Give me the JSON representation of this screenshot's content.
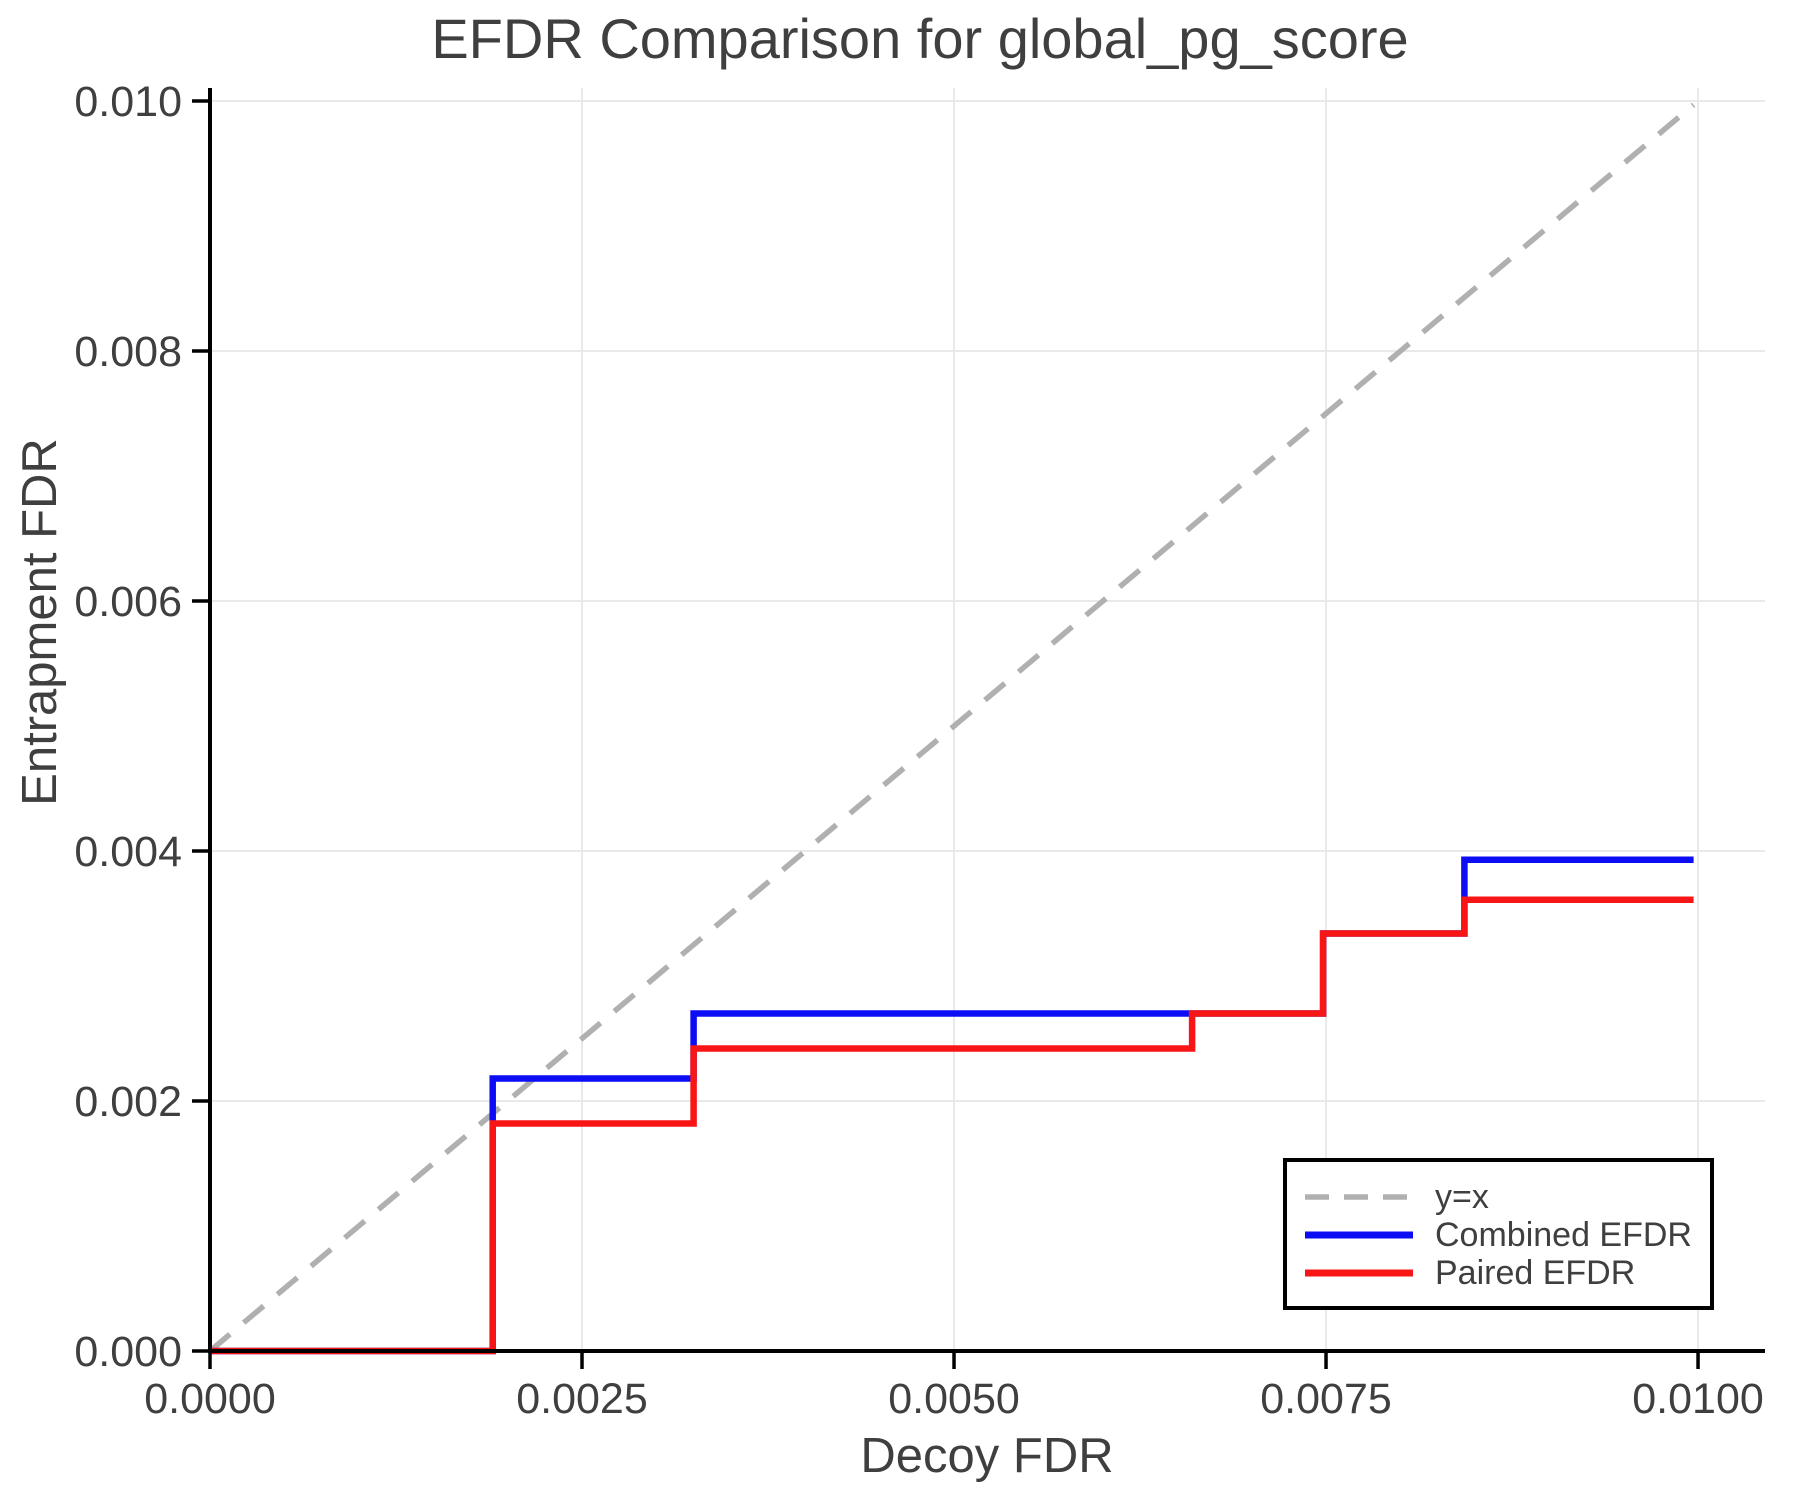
{
  "chart_data": {
    "type": "line",
    "title": "EFDR Comparison for global_pg_score",
    "xlabel": "Decoy FDR",
    "ylabel": "Entrapment FDR",
    "xlim": [
      0,
      0.01045
    ],
    "ylim": [
      0,
      0.010104
    ],
    "grid": true,
    "background": "#ffffff",
    "grid_color": "#e9e9e9",
    "axis_color": "#000000",
    "text_color": "#3f3f3f",
    "xticks": {
      "values": [
        0,
        0.0025,
        0.005,
        0.0075,
        0.01
      ],
      "labels": [
        "0.0000",
        "0.0025",
        "0.0050",
        "0.0075",
        "0.0100"
      ]
    },
    "yticks": {
      "values": [
        0,
        0.002,
        0.004,
        0.006,
        0.008,
        0.01
      ],
      "labels": [
        "0.000",
        "0.002",
        "0.004",
        "0.006",
        "0.008",
        "0.010"
      ]
    },
    "legend": {
      "position": "lower right",
      "entries": [
        "y=x",
        "Combined EFDR",
        "Paired EFDR"
      ]
    },
    "series": [
      {
        "name": "y=x",
        "style": "dashed",
        "color": "#b0b0b0",
        "x": [
          0,
          0.00997
        ],
        "y": [
          0,
          0.00997
        ]
      },
      {
        "name": "Combined EFDR",
        "style": "solid",
        "color": "#0d0df5",
        "x": [
          0,
          0.0019,
          0.0019,
          0.00325,
          0.00325,
          0.00748,
          0.00748,
          0.00843,
          0.00843,
          0.00997
        ],
        "y": [
          0,
          0,
          0.00218,
          0.00218,
          0.0027,
          0.0027,
          0.00334,
          0.00334,
          0.00393,
          0.00393
        ]
      },
      {
        "name": "Paired EFDR",
        "style": "solid",
        "color": "#f81515",
        "x": [
          0,
          0.0019,
          0.0019,
          0.00325,
          0.00325,
          0.0066,
          0.0066,
          0.00748,
          0.00748,
          0.00843,
          0.00843,
          0.00997
        ],
        "y": [
          0,
          0,
          0.00182,
          0.00182,
          0.00242,
          0.00242,
          0.0027,
          0.0027,
          0.00334,
          0.00334,
          0.00361,
          0.00361
        ]
      }
    ]
  }
}
